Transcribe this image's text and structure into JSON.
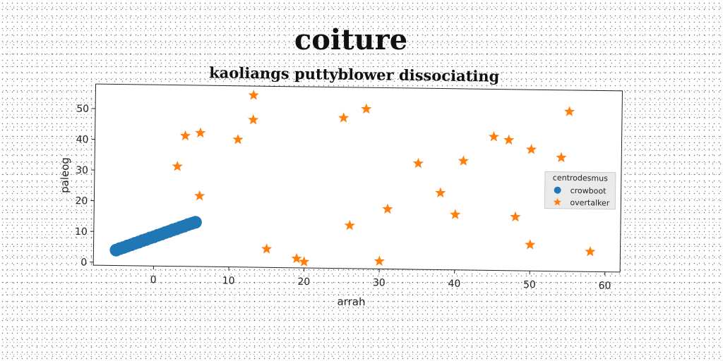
{
  "chart_data": {
    "type": "scatter",
    "suptitle": "coiture",
    "title": "kaoliangs puttyblower dissociating",
    "xlabel": "arrah",
    "ylabel": "paleog",
    "xlim": [
      -8,
      62
    ],
    "ylim": [
      -1,
      58
    ],
    "xticks": [
      0,
      10,
      20,
      30,
      40,
      50,
      60
    ],
    "yticks": [
      0,
      10,
      20,
      30,
      40,
      50
    ],
    "legend": {
      "title": "centrodesmus",
      "position": "center-right"
    },
    "series": [
      {
        "name": "crowboot",
        "marker": "circle",
        "color": "#1f77b4",
        "points": [
          {
            "x": -5.0,
            "y": 4.0
          },
          {
            "x": -4.5,
            "y": 4.5
          },
          {
            "x": -4.0,
            "y": 4.9
          },
          {
            "x": -3.5,
            "y": 5.4
          },
          {
            "x": -3.0,
            "y": 5.8
          },
          {
            "x": -2.5,
            "y": 6.3
          },
          {
            "x": -2.0,
            "y": 6.7
          },
          {
            "x": -1.5,
            "y": 7.2
          },
          {
            "x": -1.0,
            "y": 7.6
          },
          {
            "x": -0.5,
            "y": 8.1
          },
          {
            "x": 0.0,
            "y": 8.5
          },
          {
            "x": 0.5,
            "y": 9.0
          },
          {
            "x": 1.0,
            "y": 9.4
          },
          {
            "x": 1.5,
            "y": 9.9
          },
          {
            "x": 2.0,
            "y": 10.3
          },
          {
            "x": 2.5,
            "y": 10.8
          },
          {
            "x": 3.0,
            "y": 11.2
          },
          {
            "x": 3.5,
            "y": 11.7
          },
          {
            "x": 4.0,
            "y": 12.1
          },
          {
            "x": 4.5,
            "y": 12.6
          },
          {
            "x": 5.0,
            "y": 13.0
          },
          {
            "x": 5.5,
            "y": 13.4
          }
        ]
      },
      {
        "name": "overtalker",
        "marker": "star",
        "color": "#ff7f0e",
        "points": [
          {
            "x": 3.0,
            "y": 31.5
          },
          {
            "x": 4.0,
            "y": 41.5
          },
          {
            "x": 6.0,
            "y": 42.5
          },
          {
            "x": 6.0,
            "y": 22.0
          },
          {
            "x": 11.0,
            "y": 40.5
          },
          {
            "x": 13.0,
            "y": 55.0
          },
          {
            "x": 13.0,
            "y": 47.0
          },
          {
            "x": 15.0,
            "y": 5.0
          },
          {
            "x": 19.0,
            "y": 2.0
          },
          {
            "x": 20.0,
            "y": 1.0
          },
          {
            "x": 25.0,
            "y": 48.0
          },
          {
            "x": 26.0,
            "y": 13.0
          },
          {
            "x": 28.0,
            "y": 51.0
          },
          {
            "x": 30.0,
            "y": 1.5
          },
          {
            "x": 31.0,
            "y": 18.5
          },
          {
            "x": 35.0,
            "y": 33.5
          },
          {
            "x": 38.0,
            "y": 24.0
          },
          {
            "x": 40.0,
            "y": 17.0
          },
          {
            "x": 41.0,
            "y": 34.5
          },
          {
            "x": 45.0,
            "y": 42.5
          },
          {
            "x": 47.0,
            "y": 41.5
          },
          {
            "x": 48.0,
            "y": 16.5
          },
          {
            "x": 50.0,
            "y": 38.5
          },
          {
            "x": 50.0,
            "y": 7.5
          },
          {
            "x": 54.0,
            "y": 36.0
          },
          {
            "x": 55.0,
            "y": 51.0
          },
          {
            "x": 58.0,
            "y": 5.5
          }
        ]
      }
    ]
  }
}
